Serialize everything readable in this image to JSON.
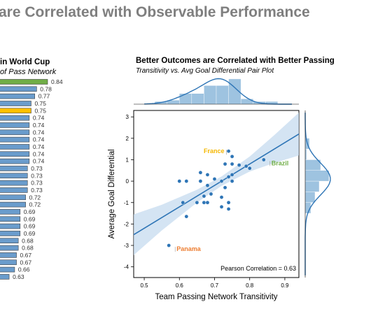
{
  "slide": {
    "title": "are Correlated with Observable Performance"
  },
  "left_panel": {
    "title": "in World Cup",
    "subtitle": "of Pass Network"
  },
  "right_panel": {
    "title": "Better Outcomes are Correlated with Better Passing",
    "subtitle": "Transitivity vs. Avg Goal Differential Pair Plot"
  },
  "colors": {
    "bar": "#6a9ccc",
    "bar_highlight_green": "#70ad47",
    "bar_highlight_gold": "#ffc000",
    "point": "#2e75b6",
    "line": "#2e75b6",
    "ci_band": "#c6dbef",
    "hist": "#9ec3e0",
    "france": "#f5b700",
    "brazil": "#70ad47",
    "panama": "#ed7d31"
  },
  "chart_data": [
    {
      "type": "bar",
      "orientation": "horizontal",
      "data_labels": [
        "0.84",
        "0.78",
        "0.77",
        "0.75",
        "0.75",
        "0.74",
        "0.74",
        "0.74",
        "0.74",
        "0.74",
        "0.74",
        "0.74",
        "0.73",
        "0.73",
        "0.73",
        "0.73",
        "0.72",
        "0.72",
        "0.69",
        "0.69",
        "0.69",
        "0.69",
        "0.68",
        "0.68",
        "0.67",
        "0.67",
        "0.66",
        "0.63"
      ],
      "values": [
        0.84,
        0.78,
        0.77,
        0.75,
        0.75,
        0.74,
        0.74,
        0.74,
        0.74,
        0.74,
        0.74,
        0.74,
        0.73,
        0.73,
        0.73,
        0.73,
        0.72,
        0.72,
        0.69,
        0.69,
        0.69,
        0.69,
        0.68,
        0.68,
        0.67,
        0.67,
        0.66,
        0.63
      ],
      "highlight": {
        "0": "green",
        "4": "gold"
      }
    },
    {
      "type": "scatter",
      "xlabel": "Team Passing Network Transitivity",
      "ylabel": "Average Goal Differential",
      "xlim": [
        0.47,
        0.94
      ],
      "ylim": [
        -4.5,
        3.3
      ],
      "xticks": [
        "0.5",
        "0.6",
        "0.7",
        "0.8",
        "0.9"
      ],
      "yticks": [
        "3",
        "2",
        "1",
        "0",
        "-1",
        "-2",
        "-3",
        "-4"
      ],
      "points": [
        [
          0.84,
          1.0
        ],
        [
          0.74,
          1.4
        ],
        [
          0.75,
          1.15
        ],
        [
          0.73,
          0.8
        ],
        [
          0.75,
          0.8
        ],
        [
          0.79,
          0.7
        ],
        [
          0.77,
          0.75
        ],
        [
          0.8,
          0.6
        ],
        [
          0.75,
          0.3
        ],
        [
          0.66,
          0.4
        ],
        [
          0.68,
          0.3
        ],
        [
          0.74,
          0.2
        ],
        [
          0.7,
          0.1
        ],
        [
          0.6,
          0.0
        ],
        [
          0.62,
          0.0
        ],
        [
          0.66,
          0.0
        ],
        [
          0.72,
          0.0
        ],
        [
          0.75,
          0.0
        ],
        [
          0.68,
          -0.2
        ],
        [
          0.73,
          -0.3
        ],
        [
          0.69,
          -0.6
        ],
        [
          0.67,
          -0.7
        ],
        [
          0.72,
          -0.75
        ],
        [
          0.61,
          -1.0
        ],
        [
          0.65,
          -1.0
        ],
        [
          0.67,
          -1.0
        ],
        [
          0.68,
          -1.0
        ],
        [
          0.74,
          -1.0
        ],
        [
          0.72,
          -1.2
        ],
        [
          0.74,
          -1.3
        ],
        [
          0.62,
          -1.65
        ],
        [
          0.57,
          -3.0
        ]
      ],
      "regression": {
        "x": [
          0.47,
          0.94
        ],
        "y": [
          -2.5,
          2.2
        ]
      },
      "labels": [
        {
          "text": "France",
          "x": 0.74,
          "y": 1.4,
          "color": "france",
          "side": "left"
        },
        {
          "text": "Brazil",
          "x": 0.84,
          "y": 1.0,
          "color": "brazil",
          "side": "right"
        },
        {
          "text": "Panama",
          "x": 0.57,
          "y": -3.0,
          "color": "panama",
          "side": "right"
        }
      ],
      "annotation": "Pearson Correlation = 0.63",
      "top_hist": [
        0.1,
        0.15,
        0.4,
        0.4,
        0.7,
        0.7,
        0.95,
        0.2,
        0.1,
        0.1
      ],
      "right_hist": [
        0.15,
        0.05,
        0.55,
        0.85,
        0.5,
        0.35,
        0.2
      ]
    }
  ]
}
